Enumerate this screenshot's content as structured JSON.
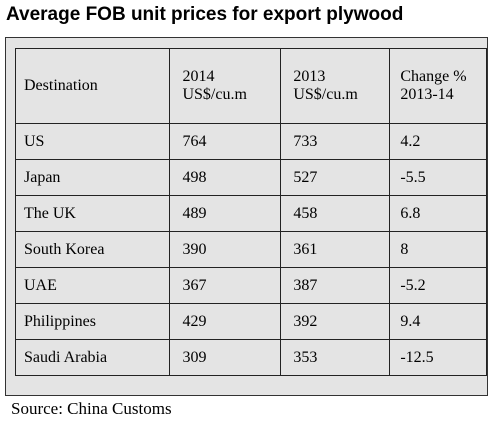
{
  "title": "Average FOB unit prices for export plywood",
  "table": {
    "headers": [
      [
        "Destination"
      ],
      [
        "2014",
        "US$/cu.m"
      ],
      [
        "2013",
        "US$/cu.m"
      ],
      [
        "Change %",
        "2013-14"
      ]
    ],
    "rows": [
      [
        "US",
        "764",
        "733",
        "4.2"
      ],
      [
        "Japan",
        "498",
        "527",
        "-5.5"
      ],
      [
        "The UK",
        "489",
        "458",
        "6.8"
      ],
      [
        "South Korea",
        "390",
        "361",
        "8"
      ],
      [
        "UAE",
        "367",
        "387",
        "-5.2"
      ],
      [
        "Philippines",
        "429",
        "392",
        "9.4"
      ],
      [
        "Saudi Arabia",
        "309",
        "353",
        "-12.5"
      ]
    ]
  },
  "source": "Source: China Customs",
  "colors": {
    "table_background": "#e4e4e4",
    "border": "#222222"
  }
}
